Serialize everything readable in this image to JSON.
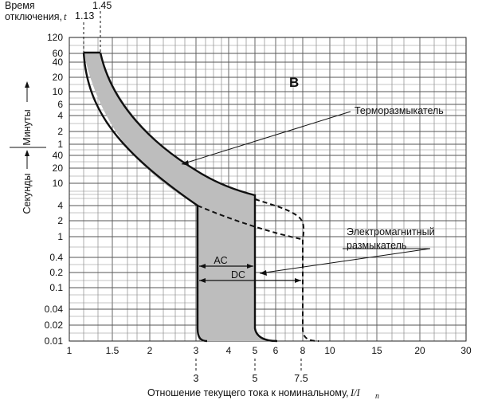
{
  "chart_data": {
    "type": "area",
    "title": "B",
    "ylabel_top": "Время",
    "ylabel_bottom": "отключения,",
    "ylabel_var": "t",
    "y_minutes_label": "Минуты",
    "y_seconds_label": "Секунды",
    "xlabel": "Отношение текущего тока к номинальному,",
    "xlabel_var": "I/I",
    "xlabel_sub": "n",
    "x_ticks": [
      "1",
      "1.5",
      "2",
      "3",
      "4",
      "5",
      "6",
      "8",
      "10",
      "15",
      "20",
      "30"
    ],
    "y_ticks_minutes": [
      "120",
      "60",
      "40",
      "20",
      "10",
      "6",
      "4",
      "2",
      "1"
    ],
    "y_ticks_seconds": [
      "40",
      "20",
      "10",
      "4",
      "2",
      "1",
      "0.4",
      "0.2",
      "0.1",
      "0.04",
      "0.02",
      "0.01"
    ],
    "top_markers": [
      "1.13",
      "1.45"
    ],
    "bottom_markers": [
      "3",
      "5",
      "7.5"
    ],
    "annotations": {
      "thermal": "Терморазмыкатель",
      "magnetic_line1": "Электромагнитный",
      "magnetic_line2": "размыкатель",
      "ac": "AC",
      "dc": "DC"
    },
    "series": [
      {
        "name": "Терморазмыкатель",
        "points": [
          [
            1.13,
            3600
          ],
          [
            1.13,
            900
          ],
          [
            1.25,
            200
          ],
          [
            1.5,
            80
          ],
          [
            2,
            38
          ],
          [
            3,
            14
          ],
          [
            5,
            6
          ]
        ]
      },
      {
        "name": "Электромагнитный размыкатель",
        "points": [
          [
            1.45,
            3600
          ],
          [
            1.6,
            300
          ],
          [
            2,
            80
          ],
          [
            3,
            22
          ],
          [
            5,
            10
          ],
          [
            7.5,
            4
          ],
          [
            7.5,
            0.01
          ]
        ]
      }
    ]
  }
}
